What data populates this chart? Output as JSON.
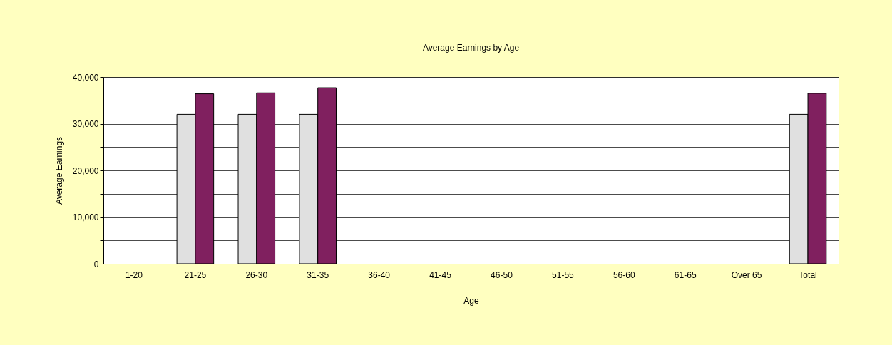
{
  "chart_data": {
    "type": "bar",
    "title": "Average Earnings by Age",
    "xlabel": "Age",
    "ylabel": "Average Earnings",
    "categories": [
      "1-20",
      "21-25",
      "26-30",
      "31-35",
      "36-40",
      "41-45",
      "46-50",
      "51-55",
      "56-60",
      "61-65",
      "Over 65",
      "Total"
    ],
    "series": [
      {
        "color": "#e0e0e0",
        "values": [
          null,
          32000,
          32000,
          32000,
          null,
          null,
          null,
          null,
          null,
          null,
          null,
          32000
        ]
      },
      {
        "color": "#80205f",
        "values": [
          null,
          36400,
          36600,
          37700,
          null,
          null,
          null,
          null,
          null,
          null,
          null,
          36500
        ]
      }
    ],
    "ylim": [
      0,
      40000
    ],
    "yticks": [
      0,
      {
        "value": 5000,
        "label": null
      },
      {
        "value": 10000,
        "label": "10,000"
      },
      {
        "value": 15000,
        "label": null
      },
      {
        "value": 20000,
        "label": "20,000"
      },
      {
        "value": 25000,
        "label": null
      },
      {
        "value": 30000,
        "label": "30,000"
      },
      {
        "value": 35000,
        "label": null
      },
      {
        "value": 40000,
        "label": "40,000"
      }
    ],
    "grid": "y",
    "legend": false
  }
}
